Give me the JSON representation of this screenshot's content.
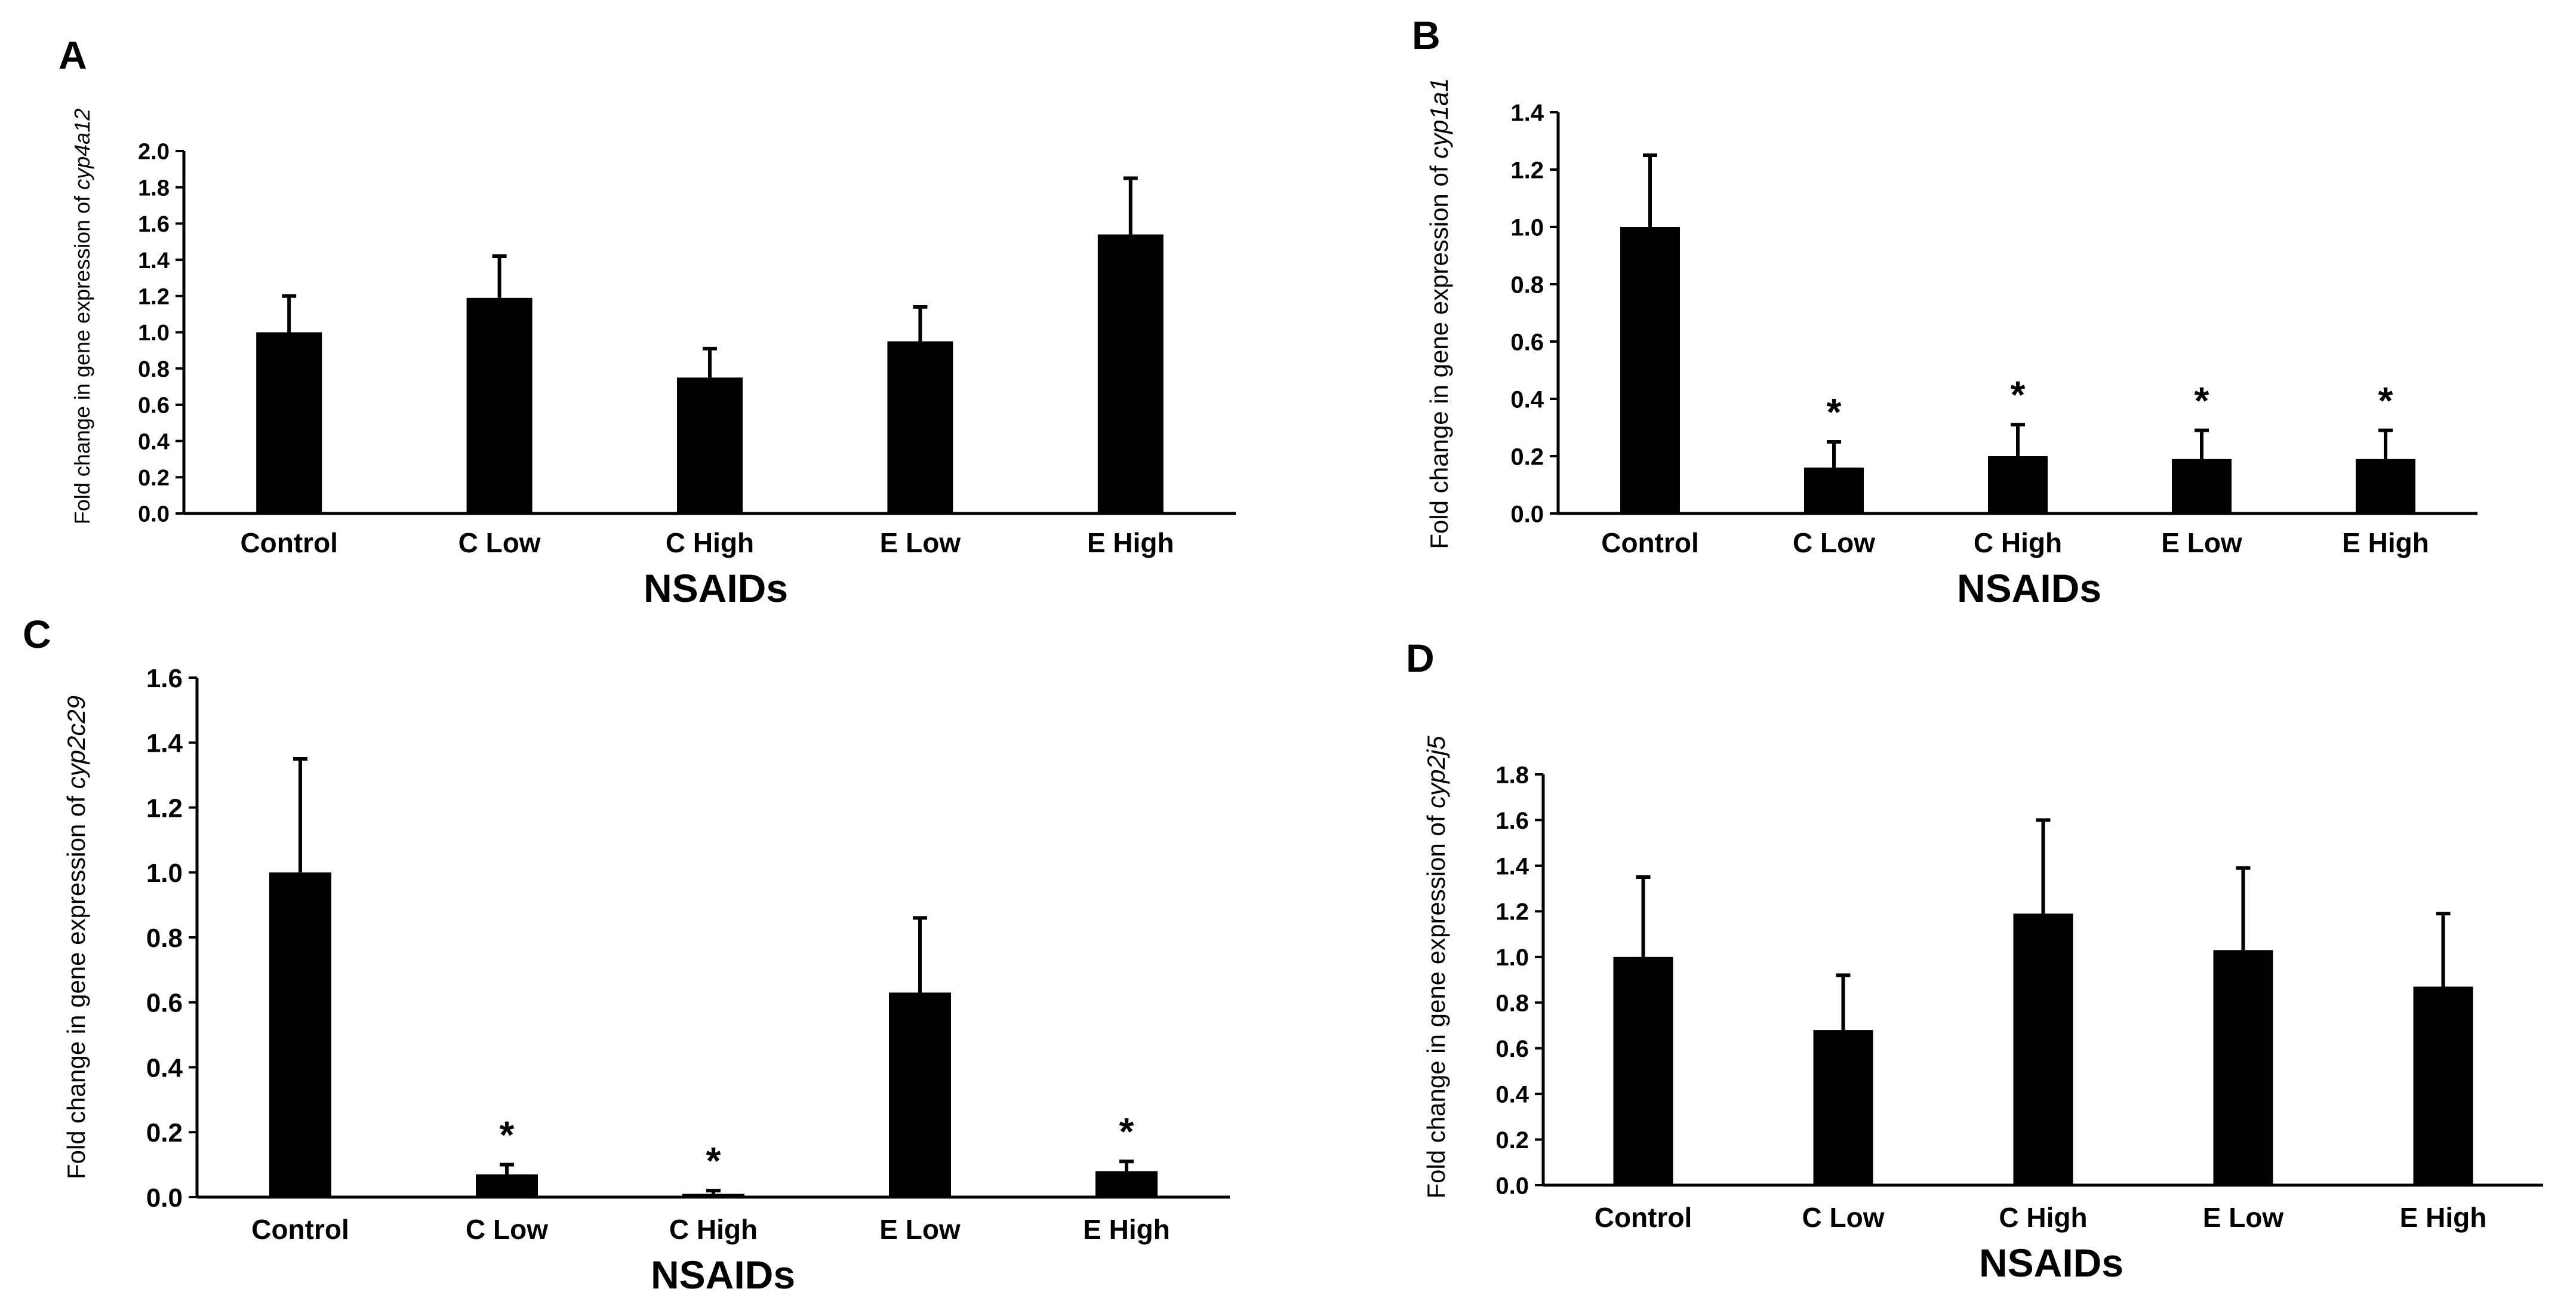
{
  "colors": {
    "bar": "#000000",
    "axis": "#000000",
    "background": "#ffffff"
  },
  "chart_data": [
    {
      "panel": "A",
      "type": "bar",
      "categories": [
        "Control",
        "C Low",
        "C High",
        "E Low",
        "E High"
      ],
      "values": [
        1.0,
        1.19,
        0.75,
        0.95,
        1.54
      ],
      "errors": [
        0.2,
        0.23,
        0.16,
        0.19,
        0.31
      ],
      "significant": [
        false,
        false,
        false,
        false,
        false
      ],
      "sig_symbol": "*",
      "xlabel": "NSAIDs",
      "ylabel_prefix": "Fold change in gene expression of ",
      "ylabel_gene": "cyp4a12",
      "ylim": [
        0,
        2.0
      ],
      "yticks": [
        "0.0",
        "0.2",
        "0.4",
        "0.6",
        "0.8",
        "1.0",
        "1.2",
        "1.4",
        "1.6",
        "1.8",
        "2.0"
      ],
      "grid": false,
      "legend": "none"
    },
    {
      "panel": "B",
      "type": "bar",
      "categories": [
        "Control",
        "C Low",
        "C High",
        "E Low",
        "E High"
      ],
      "values": [
        1.0,
        0.16,
        0.2,
        0.19,
        0.19
      ],
      "errors": [
        0.25,
        0.09,
        0.11,
        0.1,
        0.1
      ],
      "significant": [
        false,
        true,
        true,
        true,
        true
      ],
      "sig_symbol": "*",
      "xlabel": "NSAIDs",
      "ylabel_prefix": "Fold change in gene expression of ",
      "ylabel_gene": "cyp1a1",
      "ylim": [
        0,
        1.4
      ],
      "yticks": [
        "0.0",
        "0.2",
        "0.4",
        "0.6",
        "0.8",
        "1.0",
        "1.2",
        "1.4"
      ],
      "grid": false,
      "legend": "none"
    },
    {
      "panel": "C",
      "type": "bar",
      "categories": [
        "Control",
        "C Low",
        "C High",
        "E Low",
        "E High"
      ],
      "values": [
        1.0,
        0.07,
        0.01,
        0.63,
        0.08
      ],
      "errors": [
        0.35,
        0.03,
        0.01,
        0.23,
        0.03
      ],
      "significant": [
        false,
        true,
        true,
        false,
        true
      ],
      "sig_symbol": "*",
      "xlabel": "NSAIDs",
      "ylabel_prefix": "Fold change in gene expression of ",
      "ylabel_gene": "cyp2c29",
      "ylim": [
        0,
        1.6
      ],
      "yticks": [
        "0.0",
        "0.2",
        "0.4",
        "0.6",
        "0.8",
        "1.0",
        "1.2",
        "1.4",
        "1.6"
      ],
      "grid": false,
      "legend": "none"
    },
    {
      "panel": "D",
      "type": "bar",
      "categories": [
        "Control",
        "C Low",
        "C High",
        "E Low",
        "E High"
      ],
      "values": [
        1.0,
        0.68,
        1.19,
        1.03,
        0.87
      ],
      "errors": [
        0.35,
        0.24,
        0.41,
        0.36,
        0.32
      ],
      "significant": [
        false,
        false,
        false,
        false,
        false
      ],
      "sig_symbol": "*",
      "xlabel": "NSAIDs",
      "ylabel_prefix": "Fold change in gene expression of ",
      "ylabel_gene": "cyp2j5",
      "ylim": [
        0,
        1.8
      ],
      "yticks": [
        "0.0",
        "0.2",
        "0.4",
        "0.6",
        "0.8",
        "1.0",
        "1.2",
        "1.4",
        "1.6",
        "1.8"
      ],
      "grid": false,
      "legend": "none"
    }
  ]
}
